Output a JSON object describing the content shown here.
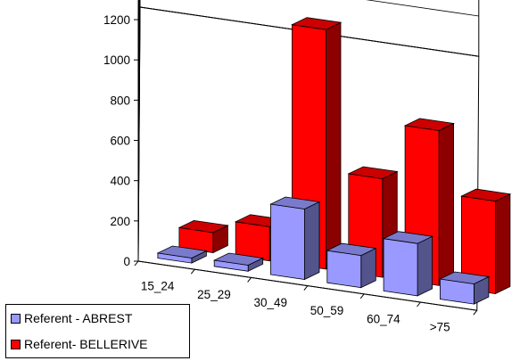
{
  "chart_data": {
    "type": "bar",
    "categories": [
      "15_24",
      "25_29",
      "30_49",
      "50_59",
      "60_74",
      ">75"
    ],
    "series": [
      {
        "name": "Referent - ABREST",
        "values": [
          25,
          30,
          350,
          160,
          260,
          100
        ],
        "color": "#9999FF"
      },
      {
        "name": "Referent- BELLERIVE",
        "values": [
          100,
          170,
          1190,
          490,
          770,
          460
        ],
        "color": "#FF0000"
      }
    ],
    "title": "",
    "xlabel": "",
    "ylabel": "",
    "ylim": [
      0,
      1200
    ],
    "y_ticks": [
      "0",
      "200",
      "400",
      "600",
      "800",
      "1000",
      "1200"
    ],
    "grid": true,
    "legend_position": "bottom-left",
    "view": "3d"
  }
}
